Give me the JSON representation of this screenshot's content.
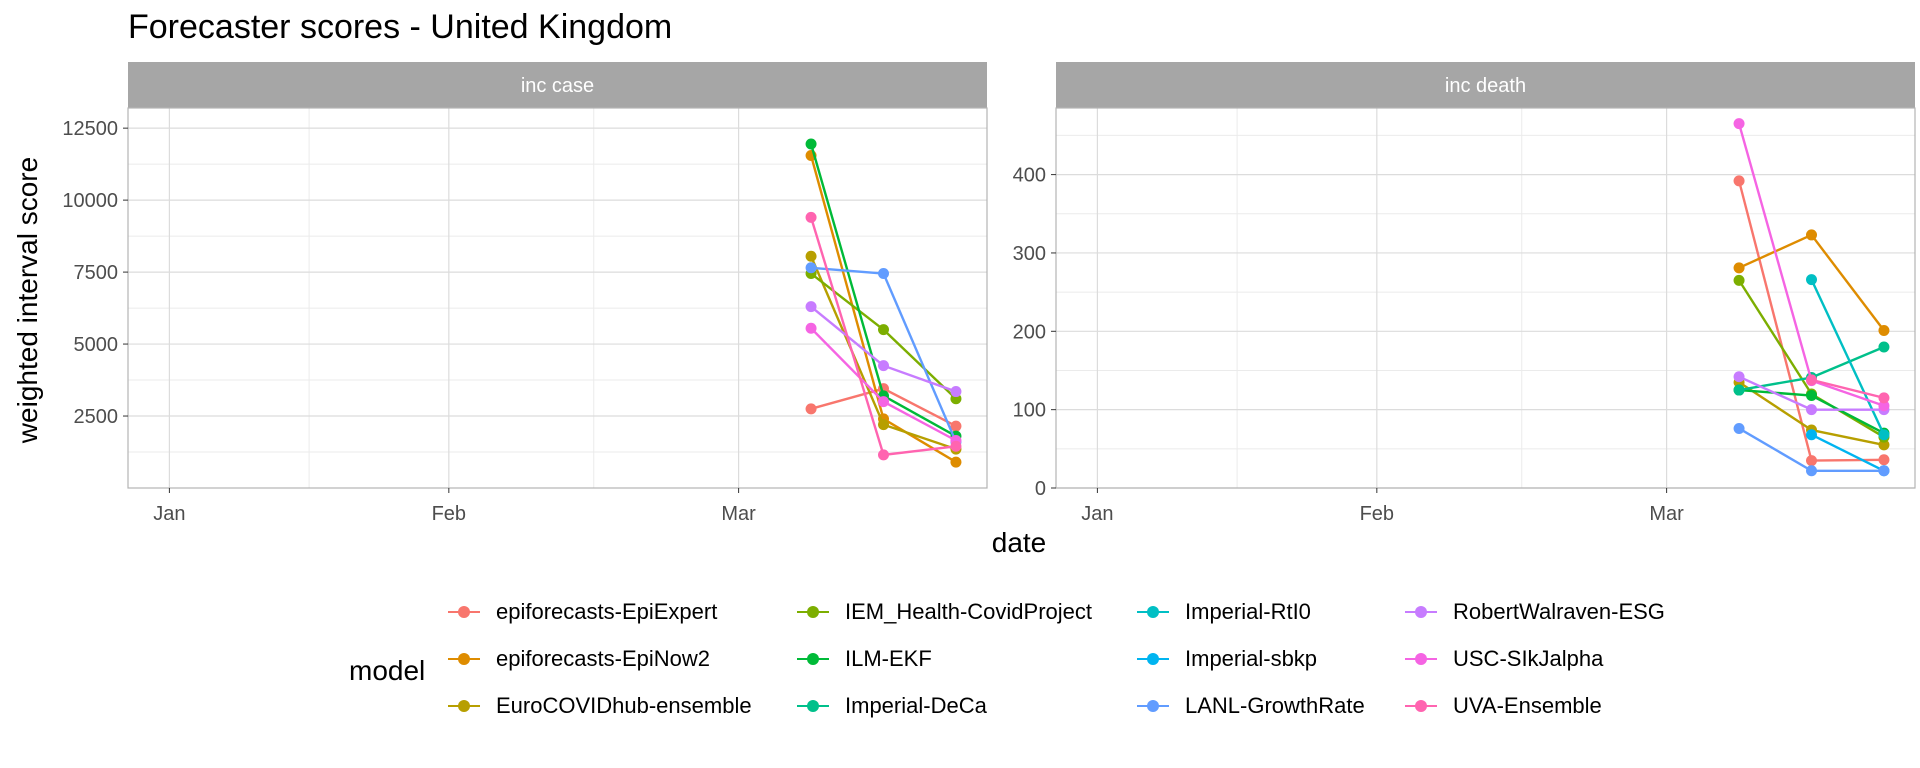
{
  "title": "Forecaster scores - United Kingdom",
  "ylabel": "weighted interval score",
  "xlabel": "date",
  "legend_title": "model",
  "chart_data": [
    {
      "type": "line",
      "facet": "inc case",
      "ylim": [
        0,
        13200
      ],
      "yticks": [
        2500,
        5000,
        7500,
        10000,
        12500
      ],
      "ytick_labels": [
        "2500",
        "5000",
        "7500",
        "10000",
        "12500"
      ],
      "xlim": [
        "2021-01-01",
        "2021-03-25"
      ],
      "xticks": [
        "2021-01-05",
        "2021-02-01",
        "2021-03-01"
      ],
      "xtick_labels": [
        "Jan",
        "Feb",
        "Mar"
      ],
      "x": [
        "2021-03-08",
        "2021-03-15",
        "2021-03-22"
      ],
      "grid": true,
      "series": [
        {
          "name": "epiforecasts-EpiExpert",
          "values": [
            2750,
            3450,
            2150
          ]
        },
        {
          "name": "epiforecasts-EpiNow2",
          "values": [
            11550,
            2400,
            900
          ]
        },
        {
          "name": "EuroCOVIDhub-ensemble",
          "values": [
            8050,
            2200,
            1350
          ]
        },
        {
          "name": "IEM_Health-CovidProject",
          "values": [
            7450,
            5500,
            3100
          ]
        },
        {
          "name": "ILM-EKF",
          "values": [
            11950,
            3200,
            1800
          ]
        },
        {
          "name": "LANL-GrowthRate",
          "values": [
            7650,
            7450,
            1600
          ]
        },
        {
          "name": "RobertWalraven-ESG",
          "values": [
            6300,
            4250,
            3350
          ]
        },
        {
          "name": "USC-SIkJalpha",
          "values": [
            5550,
            3000,
            1650
          ]
        },
        {
          "name": "UVA-Ensemble",
          "values": [
            9400,
            1150,
            1450
          ]
        }
      ]
    },
    {
      "type": "line",
      "facet": "inc death",
      "ylim": [
        0,
        485
      ],
      "yticks": [
        0,
        100,
        200,
        300,
        400
      ],
      "ytick_labels": [
        "0",
        "100",
        "200",
        "300",
        "400"
      ],
      "xlim": [
        "2021-01-01",
        "2021-03-25"
      ],
      "xticks": [
        "2021-01-05",
        "2021-02-01",
        "2021-03-01"
      ],
      "xtick_labels": [
        "Jan",
        "Feb",
        "Mar"
      ],
      "x": [
        "2021-03-08",
        "2021-03-15",
        "2021-03-22"
      ],
      "grid": true,
      "series": [
        {
          "name": "epiforecasts-EpiExpert",
          "values": [
            392,
            35,
            36
          ]
        },
        {
          "name": "epiforecasts-EpiNow2",
          "values": [
            281,
            323,
            201
          ]
        },
        {
          "name": "EuroCOVIDhub-ensemble",
          "values": [
            135,
            74,
            55
          ]
        },
        {
          "name": "IEM_Health-CovidProject",
          "values": [
            265,
            120,
            65
          ]
        },
        {
          "name": "ILM-EKF",
          "values": [
            125,
            118,
            70
          ]
        },
        {
          "name": "Imperial-DeCa",
          "values": [
            125,
            141,
            180
          ]
        },
        {
          "name": "Imperial-RtI0",
          "values": [
            null,
            266,
            68
          ]
        },
        {
          "name": "Imperial-sbkp",
          "values": [
            null,
            68,
            22
          ]
        },
        {
          "name": "LANL-GrowthRate",
          "values": [
            76,
            22,
            22
          ]
        },
        {
          "name": "RobertWalraven-ESG",
          "values": [
            142,
            100,
            100
          ]
        },
        {
          "name": "USC-SIkJalpha",
          "values": [
            465,
            137,
            105
          ]
        },
        {
          "name": "UVA-Ensemble",
          "values": [
            null,
            138,
            115
          ]
        }
      ]
    }
  ],
  "legend": [
    {
      "name": "epiforecasts-EpiExpert",
      "color": "#F8766D"
    },
    {
      "name": "epiforecasts-EpiNow2",
      "color": "#DE8C00"
    },
    {
      "name": "EuroCOVIDhub-ensemble",
      "color": "#B79F00"
    },
    {
      "name": "IEM_Health-CovidProject",
      "color": "#7CAE00"
    },
    {
      "name": "ILM-EKF",
      "color": "#00BA38"
    },
    {
      "name": "Imperial-DeCa",
      "color": "#00C08B"
    },
    {
      "name": "Imperial-RtI0",
      "color": "#00BFC4"
    },
    {
      "name": "Imperial-sbkp",
      "color": "#00B4F0"
    },
    {
      "name": "LANL-GrowthRate",
      "color": "#619CFF"
    },
    {
      "name": "RobertWalraven-ESG",
      "color": "#C77CFF"
    },
    {
      "name": "USC-SIkJalpha",
      "color": "#F564E3"
    },
    {
      "name": "UVA-Ensemble",
      "color": "#FF64B0"
    }
  ],
  "colors": {
    "strip_fill": "#A6A6A6",
    "strip_text": "#FFFFFF",
    "grid_major": "#DCDCDC",
    "grid_minor": "#EBEBEB",
    "panel_border": "#B3B3B3",
    "axis_text": "#4D4D4D"
  }
}
